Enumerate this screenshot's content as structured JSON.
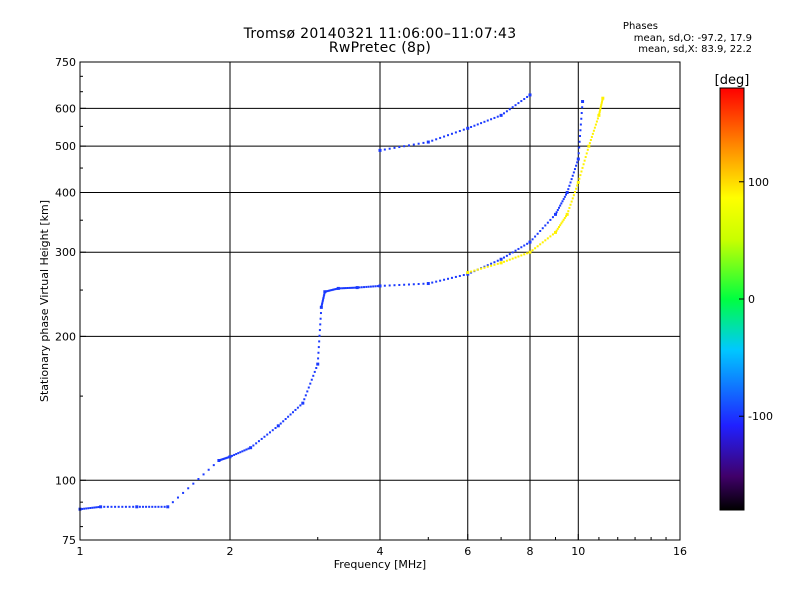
{
  "header": {
    "title_line1": "Tromsø 20140321 11:06:00–11:07:43",
    "title_line2": "RwPretec (8p)",
    "phases_heading": "Phases",
    "phases_o": "mean, sd,O: -97.2, 17.9",
    "phases_x": "mean, sd,X:  83.9, 22.2"
  },
  "colorbar": {
    "unit": "[deg]",
    "range": [
      -180,
      180
    ],
    "ticks": [
      100,
      0,
      -100
    ]
  },
  "chart_data": {
    "type": "scatter",
    "xlabel": "Frequency [MHz]",
    "ylabel": "Stationary phase Virtual Height [km]",
    "xscale": "log",
    "yscale": "log",
    "xlim": [
      1,
      16
    ],
    "ylim": [
      75,
      750
    ],
    "xticks": [
      1,
      2,
      4,
      6,
      8,
      10,
      16
    ],
    "yticks": [
      75,
      100,
      200,
      300,
      400,
      500,
      600,
      750
    ],
    "x_gridlines": [
      2,
      4,
      6,
      8,
      10
    ],
    "y_gridlines": [
      100,
      200,
      300,
      400,
      500,
      600
    ],
    "grid": true,
    "o_trace": {
      "phase_deg": -100,
      "x": [
        1.0,
        1.1,
        1.3,
        1.5,
        1.9,
        2.0,
        2.2,
        2.5,
        2.8,
        3.0,
        3.05,
        3.1,
        3.3,
        3.6,
        4.0,
        5.0,
        6.0,
        7.0,
        8.0,
        9.0,
        9.5,
        10.0,
        10.2
      ],
      "y": [
        87,
        88,
        88,
        88,
        110,
        112,
        117,
        130,
        145,
        175,
        230,
        248,
        252,
        253,
        255,
        258,
        270,
        290,
        315,
        360,
        400,
        470,
        620
      ]
    },
    "x_trace": {
      "phase_deg": 90,
      "x": [
        6.0,
        7.0,
        8.0,
        9.0,
        9.5,
        10.0,
        10.5,
        11.0,
        11.2
      ],
      "y": [
        272,
        285,
        300,
        330,
        360,
        420,
        500,
        580,
        630
      ]
    },
    "upper_trace": {
      "phase_deg": -100,
      "x": [
        4.0,
        5.0,
        6.0,
        7.0,
        8.0
      ],
      "y": [
        490,
        510,
        545,
        580,
        640
      ]
    }
  }
}
